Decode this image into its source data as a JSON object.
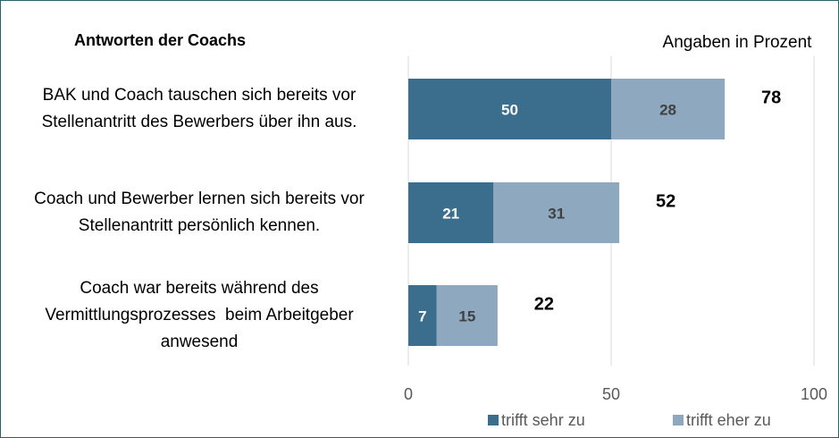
{
  "chart_data": {
    "type": "stacked_barh",
    "title": "Antworten der Coachs",
    "subtitle": "Angaben in Prozent",
    "categories": [
      "BAK und Coach tauschen sich bereits vor Stellenantritt des Bewerbers über ihn aus.",
      "Coach und Bewerber lernen sich bereits vor Stellenantritt persönlich kennen.",
      "Coach war bereits während des Vermittlungsprozesses  beim Arbeitgeber anwesend"
    ],
    "series": [
      {
        "name": "trifft sehr zu",
        "color": "#3b6e8c",
        "values": [
          50,
          21,
          7
        ]
      },
      {
        "name": "trifft eher zu",
        "color": "#8ea8bf",
        "values": [
          28,
          31,
          15
        ]
      }
    ],
    "totals": [
      78,
      52,
      22
    ],
    "xlim": [
      0,
      100
    ],
    "xticks": [
      0,
      50,
      100
    ],
    "grid": true,
    "legend": "bottom"
  }
}
